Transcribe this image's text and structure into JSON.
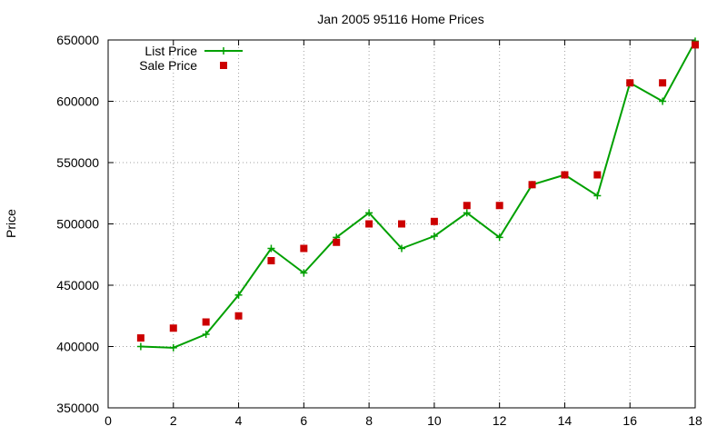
{
  "chart_data": {
    "type": "line",
    "title": "Jan 2005 95116 Home Prices",
    "xlabel": "",
    "ylabel": "Price",
    "xlim": [
      0,
      18
    ],
    "ylim": [
      350000,
      650000
    ],
    "xticks": [
      0,
      2,
      4,
      6,
      8,
      10,
      12,
      14,
      16,
      18
    ],
    "yticks": [
      350000,
      400000,
      450000,
      500000,
      550000,
      600000,
      650000
    ],
    "grid": true,
    "legend_position": "top-left",
    "x": [
      1,
      2,
      3,
      4,
      5,
      6,
      7,
      8,
      9,
      10,
      11,
      12,
      13,
      14,
      15,
      16,
      17,
      18
    ],
    "series": [
      {
        "name": "List Price",
        "style": "linespoints",
        "marker": "plus",
        "color": "#00a000",
        "values": [
          400000,
          399000,
          410000,
          442000,
          480000,
          460000,
          489000,
          509000,
          480000,
          490000,
          509000,
          489000,
          532000,
          540000,
          523000,
          615000,
          600000,
          649000
        ]
      },
      {
        "name": "Sale Price",
        "style": "points",
        "marker": "square",
        "color": "#cc0000",
        "values": [
          407000,
          415000,
          420000,
          425000,
          470000,
          480000,
          485000,
          500000,
          500000,
          502000,
          515000,
          515000,
          532000,
          540000,
          540000,
          615000,
          615000,
          646000
        ]
      }
    ]
  }
}
